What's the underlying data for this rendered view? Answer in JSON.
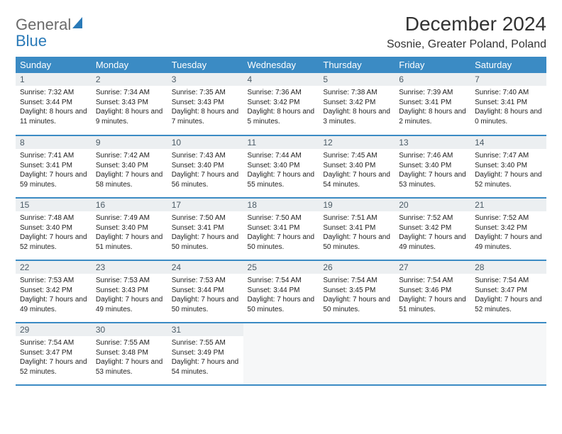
{
  "brand": {
    "text1": "General",
    "text2": "Blue"
  },
  "title": "December 2024",
  "location": "Sosnie, Greater Poland, Poland",
  "colors": {
    "header_bg": "#3b8bc4",
    "header_fg": "#ffffff",
    "daynum_bg": "#eceff1",
    "daynum_fg": "#4b5b66",
    "border": "#3b8bc4",
    "logo_gray": "#6a6a6a",
    "logo_blue": "#2a7ab8"
  },
  "weekdays": [
    "Sunday",
    "Monday",
    "Tuesday",
    "Wednesday",
    "Thursday",
    "Friday",
    "Saturday"
  ],
  "days": [
    {
      "n": "1",
      "sr": "7:32 AM",
      "ss": "3:44 PM",
      "dl": "8 hours and 11 minutes."
    },
    {
      "n": "2",
      "sr": "7:34 AM",
      "ss": "3:43 PM",
      "dl": "8 hours and 9 minutes."
    },
    {
      "n": "3",
      "sr": "7:35 AM",
      "ss": "3:43 PM",
      "dl": "8 hours and 7 minutes."
    },
    {
      "n": "4",
      "sr": "7:36 AM",
      "ss": "3:42 PM",
      "dl": "8 hours and 5 minutes."
    },
    {
      "n": "5",
      "sr": "7:38 AM",
      "ss": "3:42 PM",
      "dl": "8 hours and 3 minutes."
    },
    {
      "n": "6",
      "sr": "7:39 AM",
      "ss": "3:41 PM",
      "dl": "8 hours and 2 minutes."
    },
    {
      "n": "7",
      "sr": "7:40 AM",
      "ss": "3:41 PM",
      "dl": "8 hours and 0 minutes."
    },
    {
      "n": "8",
      "sr": "7:41 AM",
      "ss": "3:41 PM",
      "dl": "7 hours and 59 minutes."
    },
    {
      "n": "9",
      "sr": "7:42 AM",
      "ss": "3:40 PM",
      "dl": "7 hours and 58 minutes."
    },
    {
      "n": "10",
      "sr": "7:43 AM",
      "ss": "3:40 PM",
      "dl": "7 hours and 56 minutes."
    },
    {
      "n": "11",
      "sr": "7:44 AM",
      "ss": "3:40 PM",
      "dl": "7 hours and 55 minutes."
    },
    {
      "n": "12",
      "sr": "7:45 AM",
      "ss": "3:40 PM",
      "dl": "7 hours and 54 minutes."
    },
    {
      "n": "13",
      "sr": "7:46 AM",
      "ss": "3:40 PM",
      "dl": "7 hours and 53 minutes."
    },
    {
      "n": "14",
      "sr": "7:47 AM",
      "ss": "3:40 PM",
      "dl": "7 hours and 52 minutes."
    },
    {
      "n": "15",
      "sr": "7:48 AM",
      "ss": "3:40 PM",
      "dl": "7 hours and 52 minutes."
    },
    {
      "n": "16",
      "sr": "7:49 AM",
      "ss": "3:40 PM",
      "dl": "7 hours and 51 minutes."
    },
    {
      "n": "17",
      "sr": "7:50 AM",
      "ss": "3:41 PM",
      "dl": "7 hours and 50 minutes."
    },
    {
      "n": "18",
      "sr": "7:50 AM",
      "ss": "3:41 PM",
      "dl": "7 hours and 50 minutes."
    },
    {
      "n": "19",
      "sr": "7:51 AM",
      "ss": "3:41 PM",
      "dl": "7 hours and 50 minutes."
    },
    {
      "n": "20",
      "sr": "7:52 AM",
      "ss": "3:42 PM",
      "dl": "7 hours and 49 minutes."
    },
    {
      "n": "21",
      "sr": "7:52 AM",
      "ss": "3:42 PM",
      "dl": "7 hours and 49 minutes."
    },
    {
      "n": "22",
      "sr": "7:53 AM",
      "ss": "3:42 PM",
      "dl": "7 hours and 49 minutes."
    },
    {
      "n": "23",
      "sr": "7:53 AM",
      "ss": "3:43 PM",
      "dl": "7 hours and 49 minutes."
    },
    {
      "n": "24",
      "sr": "7:53 AM",
      "ss": "3:44 PM",
      "dl": "7 hours and 50 minutes."
    },
    {
      "n": "25",
      "sr": "7:54 AM",
      "ss": "3:44 PM",
      "dl": "7 hours and 50 minutes."
    },
    {
      "n": "26",
      "sr": "7:54 AM",
      "ss": "3:45 PM",
      "dl": "7 hours and 50 minutes."
    },
    {
      "n": "27",
      "sr": "7:54 AM",
      "ss": "3:46 PM",
      "dl": "7 hours and 51 minutes."
    },
    {
      "n": "28",
      "sr": "7:54 AM",
      "ss": "3:47 PM",
      "dl": "7 hours and 52 minutes."
    },
    {
      "n": "29",
      "sr": "7:54 AM",
      "ss": "3:47 PM",
      "dl": "7 hours and 52 minutes."
    },
    {
      "n": "30",
      "sr": "7:55 AM",
      "ss": "3:48 PM",
      "dl": "7 hours and 53 minutes."
    },
    {
      "n": "31",
      "sr": "7:55 AM",
      "ss": "3:49 PM",
      "dl": "7 hours and 54 minutes."
    }
  ],
  "labels": {
    "sunrise": "Sunrise:",
    "sunset": "Sunset:",
    "daylight": "Daylight:"
  },
  "layout": {
    "start_weekday": 0,
    "cols": 7
  }
}
